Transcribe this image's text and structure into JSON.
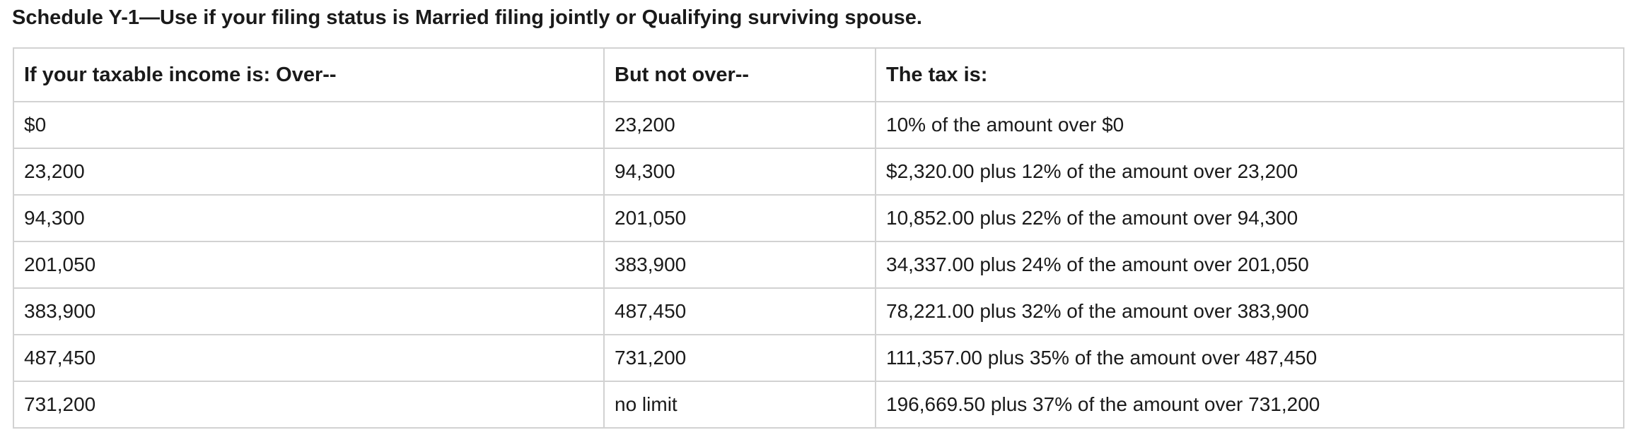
{
  "title": "Schedule Y-1—Use if your filing status is Married filing jointly or Qualifying surviving spouse.",
  "table": {
    "headers": [
      "If your taxable income is: Over--",
      "But not over--",
      "The tax is:"
    ],
    "rows": [
      {
        "over": "$0",
        "not_over": "23,200",
        "tax": "10% of the amount over $0"
      },
      {
        "over": "23,200",
        "not_over": "94,300",
        "tax": "$2,320.00 plus 12% of the amount over 23,200"
      },
      {
        "over": "94,300",
        "not_over": "201,050",
        "tax": "10,852.00 plus 22% of the amount over 94,300"
      },
      {
        "over": "201,050",
        "not_over": "383,900",
        "tax": "34,337.00 plus 24% of the amount over 201,050"
      },
      {
        "over": "383,900",
        "not_over": "487,450",
        "tax": "78,221.00 plus 32% of the amount over 383,900"
      },
      {
        "over": "487,450",
        "not_over": "731,200",
        "tax": "111,357.00 plus 35% of the amount over 487,450"
      },
      {
        "over": "731,200",
        "not_over": "no limit",
        "tax": "196,669.50 plus 37% of the amount over 731,200"
      }
    ]
  },
  "colors": {
    "text": "#1a1a1a",
    "border": "#d2d2d2",
    "background": "#ffffff"
  }
}
